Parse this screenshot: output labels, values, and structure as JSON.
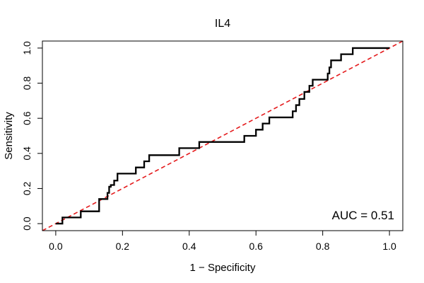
{
  "chart_data": {
    "type": "line",
    "title": "IL4",
    "xlabel": "1 − Specificity",
    "ylabel": "Sensitivity",
    "xlim": [
      -0.04,
      1.04
    ],
    "ylim": [
      -0.04,
      1.04
    ],
    "x_ticks": [
      0.0,
      0.2,
      0.4,
      0.6,
      0.8,
      1.0
    ],
    "x_tick_labels": [
      "0.0",
      "0.2",
      "0.4",
      "0.6",
      "0.8",
      "1.0"
    ],
    "y_ticks": [
      0.0,
      0.2,
      0.4,
      0.6,
      0.8,
      1.0
    ],
    "y_tick_labels": [
      "0.0",
      "0.2",
      "0.4",
      "0.6",
      "0.8",
      "1.0"
    ],
    "grid": false,
    "annotation": "AUC = 0.51",
    "series": [
      {
        "name": "ROC curve",
        "color": "#000000",
        "style": "solid",
        "step": true,
        "x": [
          0.0,
          0.0,
          0.02,
          0.02,
          0.075,
          0.075,
          0.13,
          0.13,
          0.155,
          0.155,
          0.16,
          0.16,
          0.165,
          0.165,
          0.175,
          0.175,
          0.185,
          0.185,
          0.195,
          0.195,
          0.24,
          0.24,
          0.265,
          0.265,
          0.28,
          0.28,
          0.37,
          0.37,
          0.43,
          0.43,
          0.565,
          0.565,
          0.6,
          0.6,
          0.62,
          0.62,
          0.64,
          0.64,
          0.71,
          0.71,
          0.72,
          0.72,
          0.73,
          0.73,
          0.745,
          0.745,
          0.76,
          0.76,
          0.77,
          0.77,
          0.78,
          0.78,
          0.815,
          0.815,
          0.82,
          0.82,
          0.825,
          0.825,
          0.835,
          0.835,
          0.855,
          0.855,
          0.89,
          0.89,
          1.0
        ],
        "y": [
          0.0,
          0.0,
          0.0,
          0.035,
          0.035,
          0.07,
          0.07,
          0.14,
          0.14,
          0.175,
          0.175,
          0.21,
          0.21,
          0.22,
          0.22,
          0.245,
          0.245,
          0.285,
          0.285,
          0.285,
          0.285,
          0.32,
          0.32,
          0.355,
          0.355,
          0.39,
          0.39,
          0.43,
          0.43,
          0.465,
          0.465,
          0.5,
          0.5,
          0.535,
          0.535,
          0.57,
          0.57,
          0.605,
          0.605,
          0.64,
          0.64,
          0.675,
          0.675,
          0.71,
          0.71,
          0.75,
          0.75,
          0.785,
          0.785,
          0.82,
          0.82,
          0.82,
          0.82,
          0.855,
          0.855,
          0.89,
          0.89,
          0.93,
          0.93,
          0.93,
          0.93,
          0.965,
          0.965,
          1.0,
          1.0
        ]
      },
      {
        "name": "Reference diagonal",
        "color": "#e41a1c",
        "style": "dashed",
        "x": [
          -0.04,
          1.04
        ],
        "y": [
          -0.04,
          1.04
        ]
      }
    ]
  }
}
